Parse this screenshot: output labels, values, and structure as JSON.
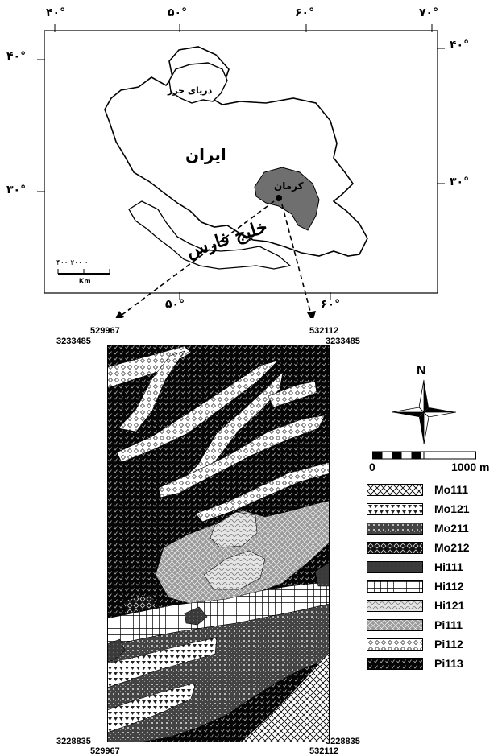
{
  "inset_map": {
    "top_ticks": [
      "۴۰°",
      "۵۰°",
      "۶۰°",
      "۷۰°"
    ],
    "bottom_ticks": [
      "۵۰°",
      "۶۰°"
    ],
    "left_ticks": [
      "۴۰°",
      "۳۰°"
    ],
    "right_ticks": [
      "۴۰°",
      "۳۰°"
    ],
    "labels": {
      "caspian": "دریای خزر",
      "iran": "ایران",
      "kerman": "کرمان",
      "gulf": "خلیج فارس"
    },
    "scale_bar": {
      "ticks": "۴۰۰  ۲۰۰  ۰",
      "unit": "Km"
    }
  },
  "study_area": {
    "corners": {
      "top_left_x": "529967",
      "top_left_y": "3233485",
      "top_right_x": "532112",
      "top_right_y": "3233485",
      "bottom_left_x": "529967",
      "bottom_left_y": "3228835",
      "bottom_right_x": "532112",
      "bottom_right_y": "3228835"
    }
  },
  "north_arrow": {
    "label": "N"
  },
  "scale": {
    "start": "0",
    "end": "1000 m"
  },
  "legend": [
    {
      "code": "Mo111",
      "pattern": "p-mo111"
    },
    {
      "code": "Mo121",
      "pattern": "p-mo121"
    },
    {
      "code": "Mo211",
      "pattern": "p-mo211"
    },
    {
      "code": "Mo212",
      "pattern": "p-mo212"
    },
    {
      "code": "Hi111",
      "pattern": "p-hi111"
    },
    {
      "code": "Hi112",
      "pattern": "p-hi112"
    },
    {
      "code": "Hi121",
      "pattern": "p-hi121"
    },
    {
      "code": "Pi111",
      "pattern": "p-pi111"
    },
    {
      "code": "Pi112",
      "pattern": "p-pi112"
    },
    {
      "code": "Pi113",
      "pattern": "p-pi113"
    }
  ]
}
